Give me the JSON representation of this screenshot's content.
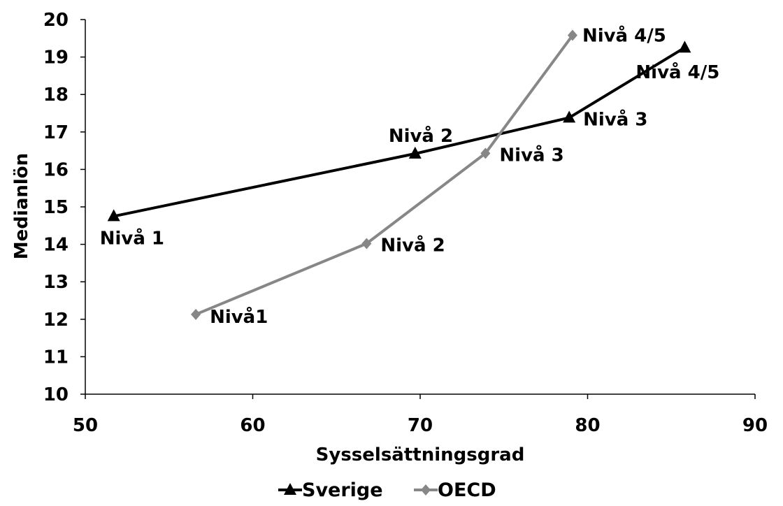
{
  "chart_data": {
    "type": "scatter",
    "title": "",
    "xlabel": "Sysselsättningsgrad",
    "ylabel": "Medianlön",
    "xlim": [
      50,
      90
    ],
    "ylim": [
      10,
      20
    ],
    "x_ticks": [
      50,
      60,
      70,
      80,
      90
    ],
    "y_ticks": [
      10,
      11,
      12,
      13,
      14,
      15,
      16,
      17,
      18,
      19,
      20
    ],
    "grid": false,
    "legend_position": "bottom",
    "series": [
      {
        "name": "Sverige",
        "color": "#000000",
        "marker": "triangle",
        "points": [
          {
            "x": 51.7,
            "y": 14.75,
            "label": "Nivå 1"
          },
          {
            "x": 69.7,
            "y": 16.42,
            "label": "Nivå 2"
          },
          {
            "x": 78.9,
            "y": 17.38,
            "label": "Nivå 3"
          },
          {
            "x": 85.8,
            "y": 19.25,
            "label": "Nivå 4/5"
          }
        ]
      },
      {
        "name": "OECD",
        "color": "#878787",
        "marker": "diamond",
        "points": [
          {
            "x": 56.6,
            "y": 12.13,
            "label": "Nivå1"
          },
          {
            "x": 66.8,
            "y": 14.02,
            "label": "Nivå 2"
          },
          {
            "x": 73.9,
            "y": 16.43,
            "label": "Nivå 3"
          },
          {
            "x": 79.1,
            "y": 19.58,
            "label": "Nivå 4/5"
          }
        ]
      }
    ]
  }
}
